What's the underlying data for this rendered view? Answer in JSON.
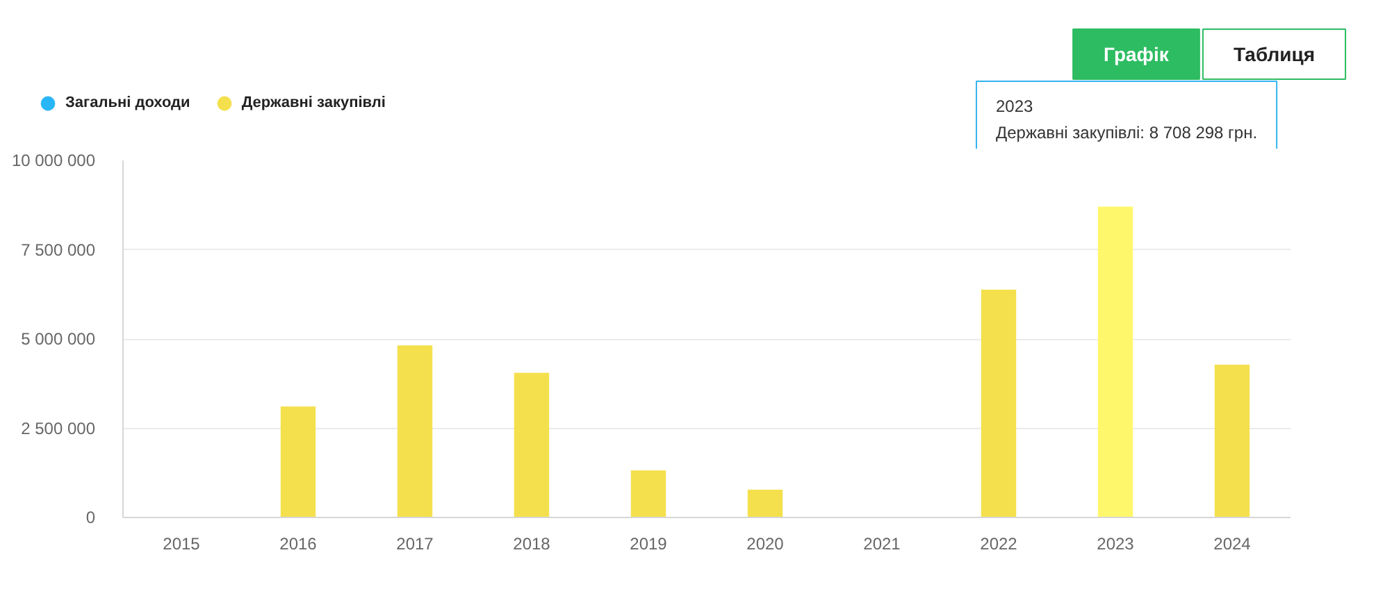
{
  "chart_data": {
    "type": "bar",
    "categories": [
      "2015",
      "2016",
      "2017",
      "2018",
      "2019",
      "2020",
      "2021",
      "2022",
      "2023",
      "2024"
    ],
    "series": [
      {
        "name": "Загальні доходи",
        "color": "#29b6f6",
        "values": [
          null,
          null,
          null,
          null,
          null,
          null,
          null,
          null,
          null,
          null
        ]
      },
      {
        "name": "Державні закупівлі",
        "color": "#f4e04d",
        "colors": [
          "#f4e04d",
          "#f4e04d",
          "#f4e04d",
          "#f4e04d",
          "#f4e04d",
          "#f4e04d",
          "#f4e04d",
          "#f4e04d",
          "#fff76b",
          "#f4e04d"
        ],
        "values": [
          null,
          3110000,
          4820000,
          4050000,
          1320000,
          780000,
          null,
          6380000,
          8708298,
          4280000
        ]
      }
    ],
    "ylim": [
      0,
      10000000
    ],
    "yticks": [
      0,
      {
        "value": 2500000,
        "label": "2 500 000"
      },
      {
        "value": 5000000,
        "label": "5 000 000"
      },
      {
        "value": 7500000,
        "label": "7 500 000"
      },
      {
        "value": 10000000,
        "label": "10 000 000"
      }
    ],
    "grid": "y",
    "legend": "top left",
    "annotations": [
      "2023\nДержавні закупівлі: 8 708 298 грн.",
      "Графік",
      "Таблиця"
    ]
  }
}
